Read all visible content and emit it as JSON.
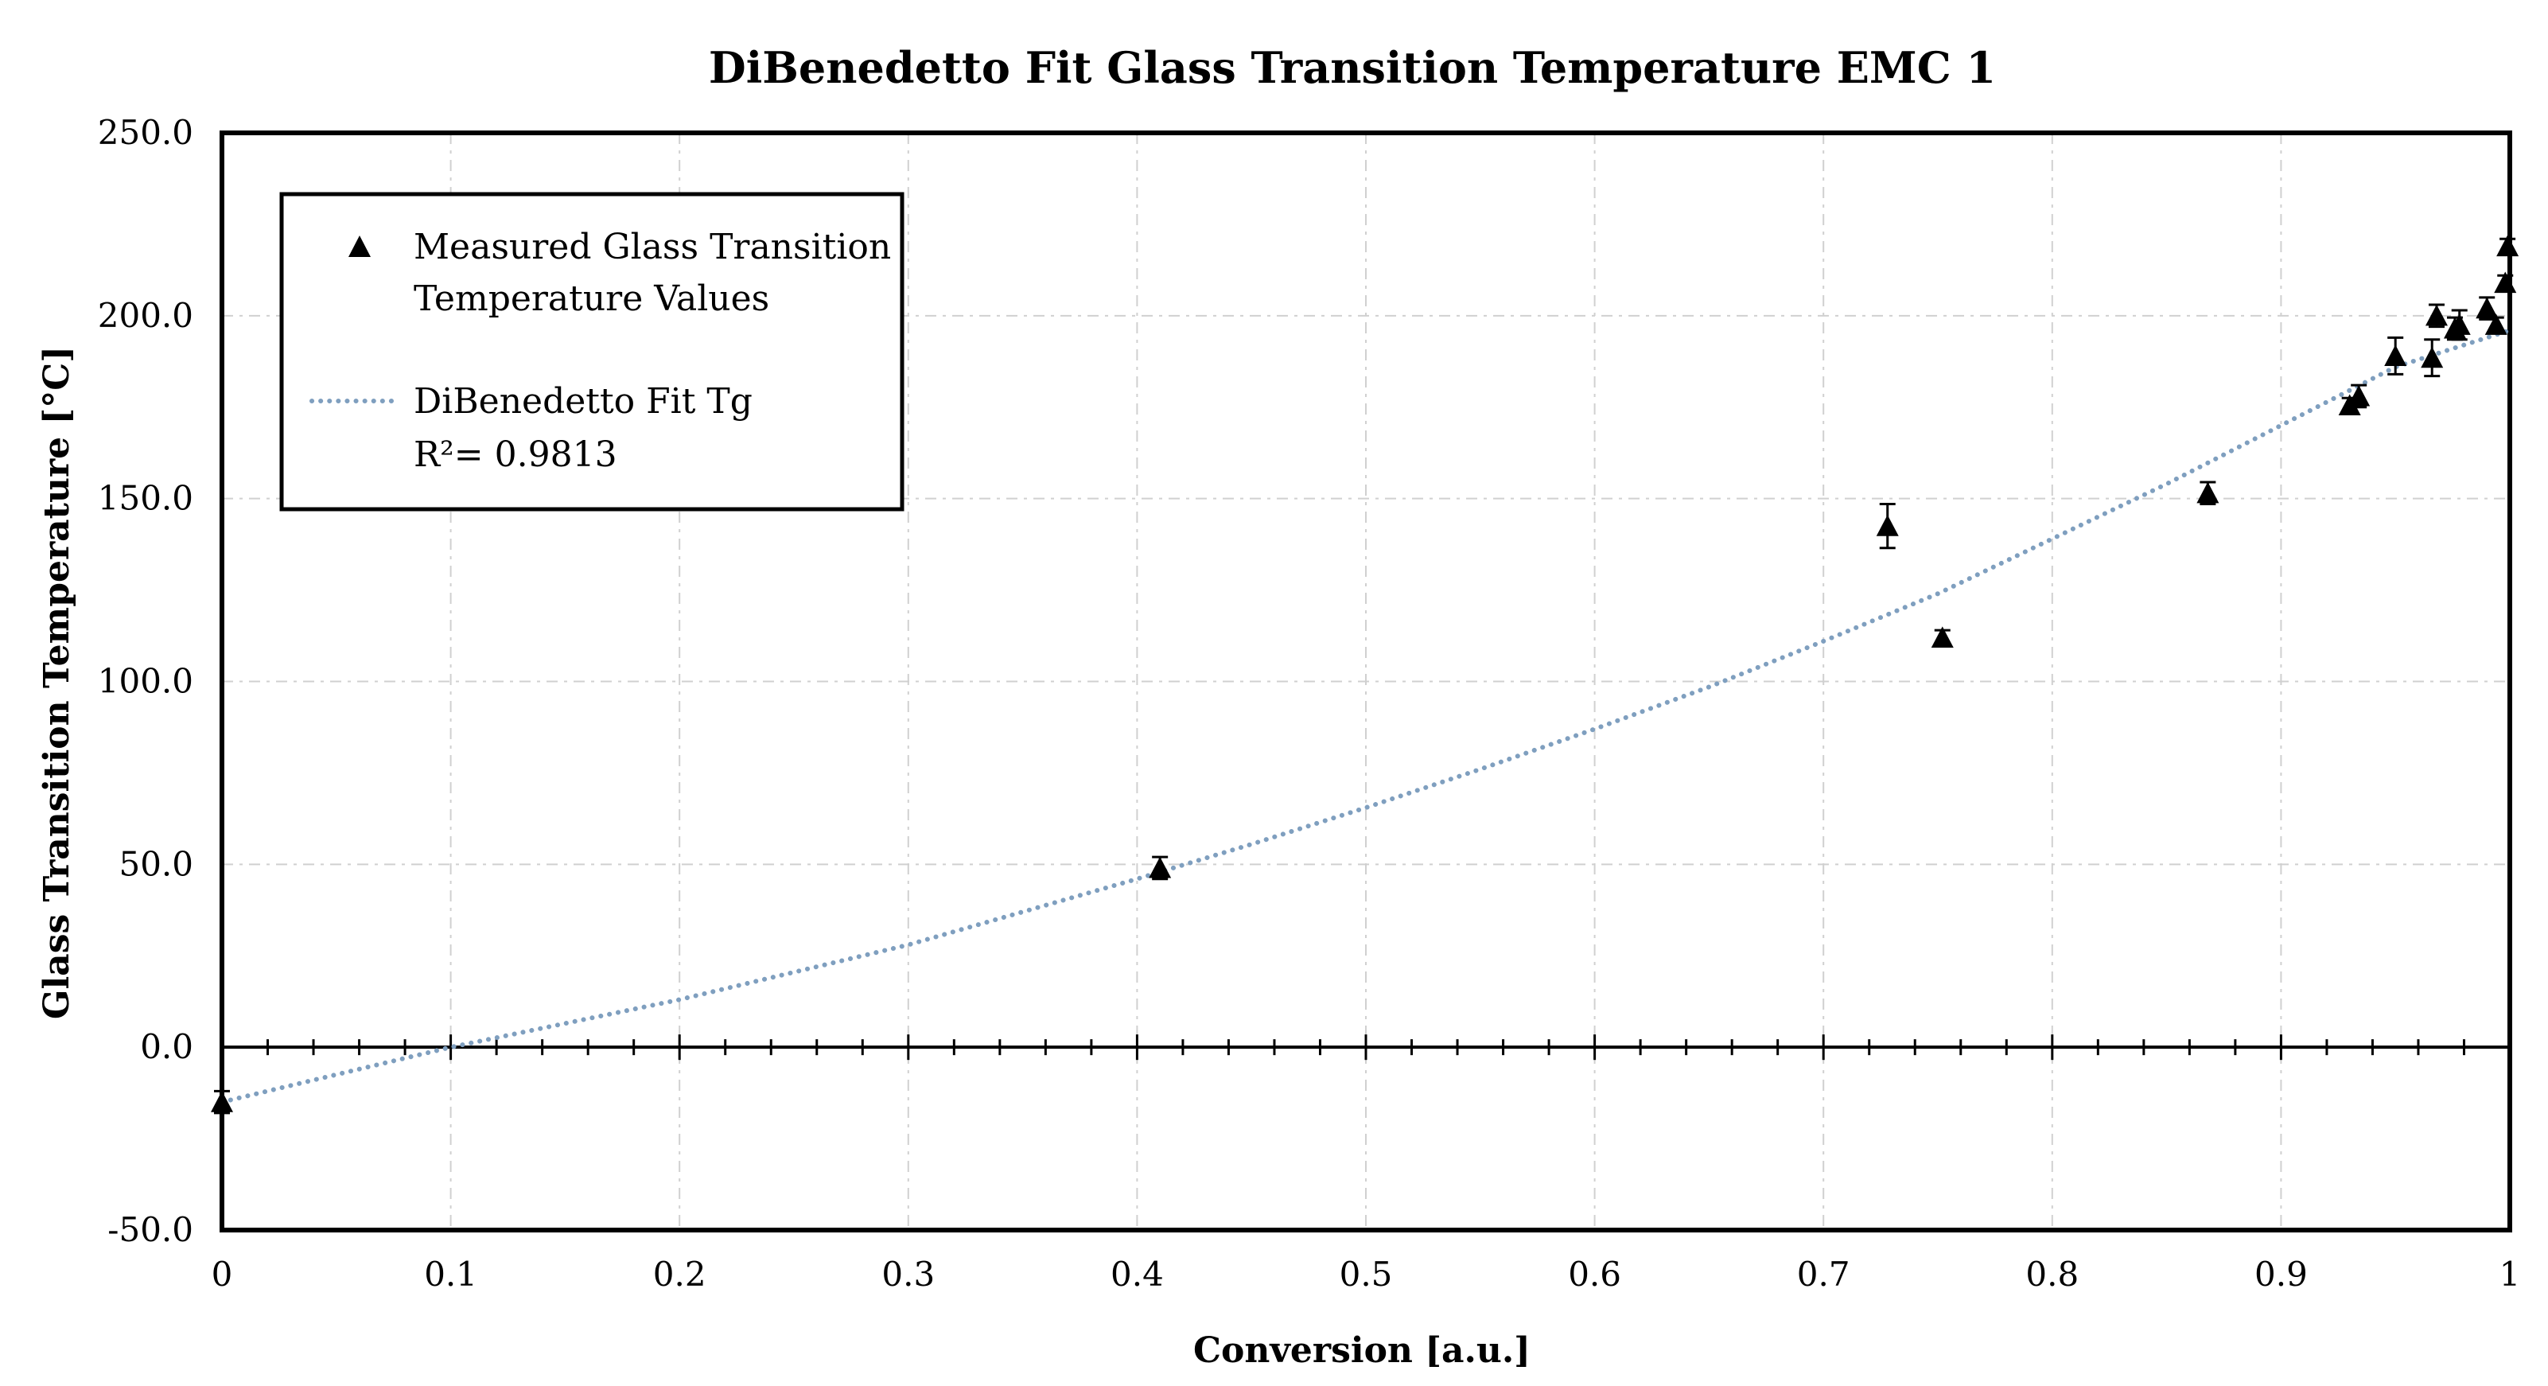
{
  "chart_data": {
    "type": "scatter",
    "title": "DiBenedetto Fit Glass Transition Temperature EMC 1",
    "xlabel": "Conversion [a.u.]",
    "ylabel": "Glass Transition Temperature [°C]",
    "xlim": [
      0,
      1
    ],
    "ylim": [
      -50,
      250
    ],
    "x_ticks": [
      0,
      0.1,
      0.2,
      0.3,
      0.4,
      0.5,
      0.6,
      0.7,
      0.8,
      0.9,
      1
    ],
    "x_tick_labels": [
      "0",
      "0.1",
      "0.2",
      "0.3",
      "0.4",
      "0.5",
      "0.6",
      "0.7",
      "0.8",
      "0.9",
      "1"
    ],
    "y_ticks": [
      -50,
      0,
      50,
      100,
      150,
      200,
      250
    ],
    "y_tick_labels": [
      "-50.0",
      "0.0",
      "50.0",
      "100.0",
      "150.0",
      "200.0",
      "250.0"
    ],
    "grid": true,
    "legend_position": "top-left",
    "series": [
      {
        "name": "Measured Glass Transition Temperature Values",
        "legend_lines": [
          "Measured Glass Transition",
          "Temperature Values"
        ],
        "kind": "points",
        "marker": "triangle",
        "color": "#000000",
        "points": [
          {
            "x": 0.0,
            "y": -15.0,
            "err": 3
          },
          {
            "x": 0.41,
            "y": 49.0,
            "err": 3
          },
          {
            "x": 0.728,
            "y": 142.5,
            "err": 6
          },
          {
            "x": 0.752,
            "y": 112.0,
            "err": 2
          },
          {
            "x": 0.868,
            "y": 151.5,
            "err": 3
          },
          {
            "x": 0.93,
            "y": 175.5,
            "err": 2
          },
          {
            "x": 0.934,
            "y": 178.0,
            "err": 3
          },
          {
            "x": 0.95,
            "y": 189.0,
            "err": 5
          },
          {
            "x": 0.966,
            "y": 188.5,
            "err": 5
          },
          {
            "x": 0.968,
            "y": 200.0,
            "err": 3
          },
          {
            "x": 0.976,
            "y": 196.5,
            "err": 3
          },
          {
            "x": 0.978,
            "y": 197.5,
            "err": 4
          },
          {
            "x": 0.99,
            "y": 202.0,
            "err": 3
          },
          {
            "x": 0.994,
            "y": 197.5,
            "err": 2
          },
          {
            "x": 0.998,
            "y": 209.0,
            "err": 2
          },
          {
            "x": 0.999,
            "y": 219.0,
            "err": 2
          }
        ]
      },
      {
        "name": "DiBenedetto Fit Tg",
        "legend_lines": [
          "DiBenedetto Fit Tg",
          "R²= 0.9813"
        ],
        "kind": "dotted-line",
        "color": "#7f9fbf",
        "x": [
          0,
          0.05,
          0.1,
          0.15,
          0.2,
          0.25,
          0.3,
          0.35,
          0.4,
          0.45,
          0.5,
          0.55,
          0.6,
          0.65,
          0.7,
          0.75,
          0.8,
          0.85,
          0.9,
          0.95,
          1.0
        ],
        "y": [
          -15,
          -7.5,
          0,
          6.5,
          13,
          20.5,
          28,
          37,
          46,
          55.5,
          65.5,
          76,
          87,
          98.5,
          111,
          124,
          139,
          154,
          170,
          186,
          196
        ]
      }
    ]
  }
}
